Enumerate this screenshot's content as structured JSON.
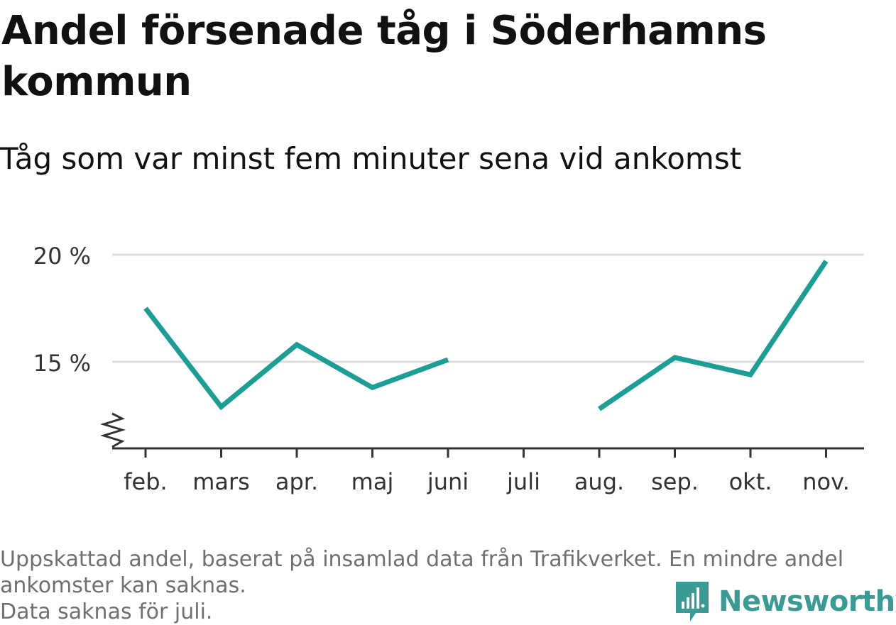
{
  "header": {
    "title": "Andel försenade tåg i Söderhamns kommun",
    "subtitle": "Tåg som var minst fem minuter sena vid ankomst"
  },
  "footer": {
    "note_line1": "Uppskattad andel, baserat på insamlad data från Trafikverket. En mindre andel",
    "note_line2": "ankomster kan saknas.",
    "note_line3": "Data saknas för juli.",
    "brand": "Newsworthy",
    "brand_icon": "newsworthy-logo-icon"
  },
  "colors": {
    "line": "#1a9e95",
    "grid": "#dddddd",
    "axis": "#333333",
    "brand": "#3a9a94"
  },
  "chart_data": {
    "type": "line",
    "categories": [
      "feb.",
      "mars",
      "apr.",
      "maj",
      "juni",
      "juli",
      "aug.",
      "sep.",
      "okt.",
      "nov."
    ],
    "series": [
      {
        "values": [
          17.5,
          12.9,
          15.8,
          13.8,
          15.1,
          null,
          12.8,
          15.2,
          14.4,
          19.7
        ]
      }
    ],
    "yticks": [
      15,
      20
    ],
    "ytick_labels": [
      "15 %",
      "20 %"
    ],
    "ylim": [
      11,
      20
    ],
    "broken_axis": true,
    "grid": true,
    "xlabel": "",
    "ylabel": ""
  }
}
